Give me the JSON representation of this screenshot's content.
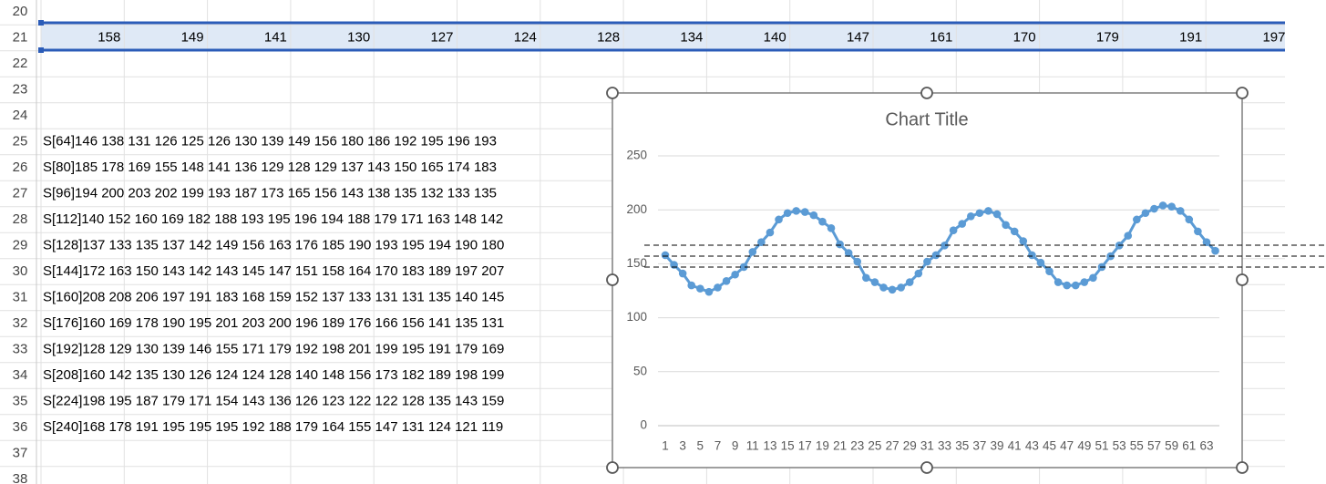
{
  "sheet": {
    "row_headers": [
      20,
      21,
      22,
      23,
      24,
      25,
      26,
      27,
      28,
      29,
      30,
      31,
      32,
      33,
      34,
      35,
      36,
      37,
      38
    ],
    "row21": [
      158,
      149,
      141,
      130,
      127,
      124,
      128,
      134,
      140,
      147,
      161,
      170,
      179,
      191,
      197
    ],
    "text_rows": [
      "S[64]146 138 131 126 125 126 130 139 149 156 180 186 192 195 196 193",
      "S[80]185 178 169 155 148 141 136 129 128 129 137 143 150 165 174 183",
      "S[96]194 200 203 202 199 193 187 173 165 156 143 138 135 132 133 135",
      "S[112]140 152 160 169 182 188 193 195 196 194 188 179 171 163 148 142",
      "S[128]137 133 135 137 142 149 156 163 176 185 190 193 195 194 190 180",
      "S[144]172 163 150 143 142 143 145 147 151 158 164 170 183 189 197 207",
      "S[160]208 208 206 197 191 183 168 159 152 137 133 131 131 135 140 145",
      "S[176]160 169 178 190 195 201 203 200 196 189 176 166 156 141 135 131",
      "S[192]128 129 130 139 146 155 171 179 192 198 201 199 195 191 179 169",
      "S[208]160 142 135 130 126 124 124 128 140 148 156 173 182 189 198 199",
      "S[224]198 195 187 179 171 154 143 136 126 123 122 122 128 135 143 159",
      "S[240]168 178 191 195 195 195 192 188 179 164 155 147 131 124 121 119"
    ]
  },
  "chart_data": {
    "type": "line",
    "title": "Chart Title",
    "categories": [
      1,
      null,
      3,
      null,
      5,
      null,
      7,
      null,
      9,
      null,
      11,
      null,
      13,
      null,
      15,
      null,
      17,
      null,
      19,
      null,
      21,
      null,
      23,
      null,
      25,
      null,
      27,
      null,
      29,
      null,
      31,
      null,
      33,
      null,
      35,
      null,
      37,
      null,
      39,
      null,
      41,
      null,
      43,
      null,
      45,
      null,
      47,
      null,
      49,
      null,
      51,
      null,
      53,
      null,
      55,
      null,
      57,
      null,
      59,
      null,
      61,
      null,
      63,
      null
    ],
    "values": [
      158,
      149,
      141,
      130,
      127,
      124,
      128,
      134,
      140,
      147,
      161,
      170,
      179,
      191,
      197,
      199,
      198,
      195,
      189,
      183,
      168,
      160,
      152,
      137,
      133,
      128,
      126,
      128,
      133,
      141,
      152,
      158,
      167,
      181,
      187,
      194,
      197,
      199,
      196,
      186,
      180,
      171,
      158,
      151,
      143,
      133,
      130,
      130,
      133,
      137,
      147,
      157,
      167,
      176,
      191,
      197,
      201,
      204,
      203,
      199,
      191,
      180,
      170,
      162
    ],
    "color": "#5b9bd5",
    "ylim": [
      0,
      250
    ],
    "yticks": [
      0,
      50,
      100,
      150,
      200,
      250
    ],
    "grid": true
  }
}
